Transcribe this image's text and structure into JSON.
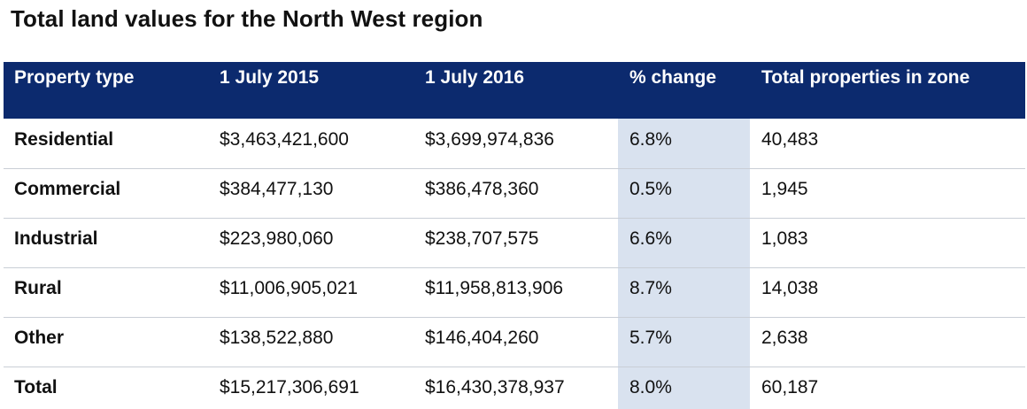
{
  "title": "Total land values for the North West region",
  "chart_data": {
    "type": "table",
    "columns": [
      "Property type",
      "1 July 2015",
      "1 July 2016",
      "% change",
      "Total properties in zone"
    ],
    "rows": [
      [
        "Residential",
        "$3,463,421,600",
        "$3,699,974,836",
        "6.8%",
        "40,483"
      ],
      [
        "Commercial",
        "$384,477,130",
        "$386,478,360",
        "0.5%",
        "1,945"
      ],
      [
        "Industrial",
        "$223,980,060",
        "$238,707,575",
        "6.6%",
        "1,083"
      ],
      [
        "Rural",
        "$11,006,905,021",
        "$11,958,813,906",
        "8.7%",
        "14,038"
      ],
      [
        "Other",
        "$138,522,880",
        "$146,404,260",
        "5.7%",
        "2,638"
      ],
      [
        "Total",
        "$15,217,306,691",
        "$16,430,378,937",
        "8.0%",
        "60,187"
      ]
    ]
  },
  "colors": {
    "header_bg": "#0c2a6e",
    "header_text": "#ffffff",
    "highlight_column": "#d9e2ef",
    "divider": "#c9ced6"
  }
}
